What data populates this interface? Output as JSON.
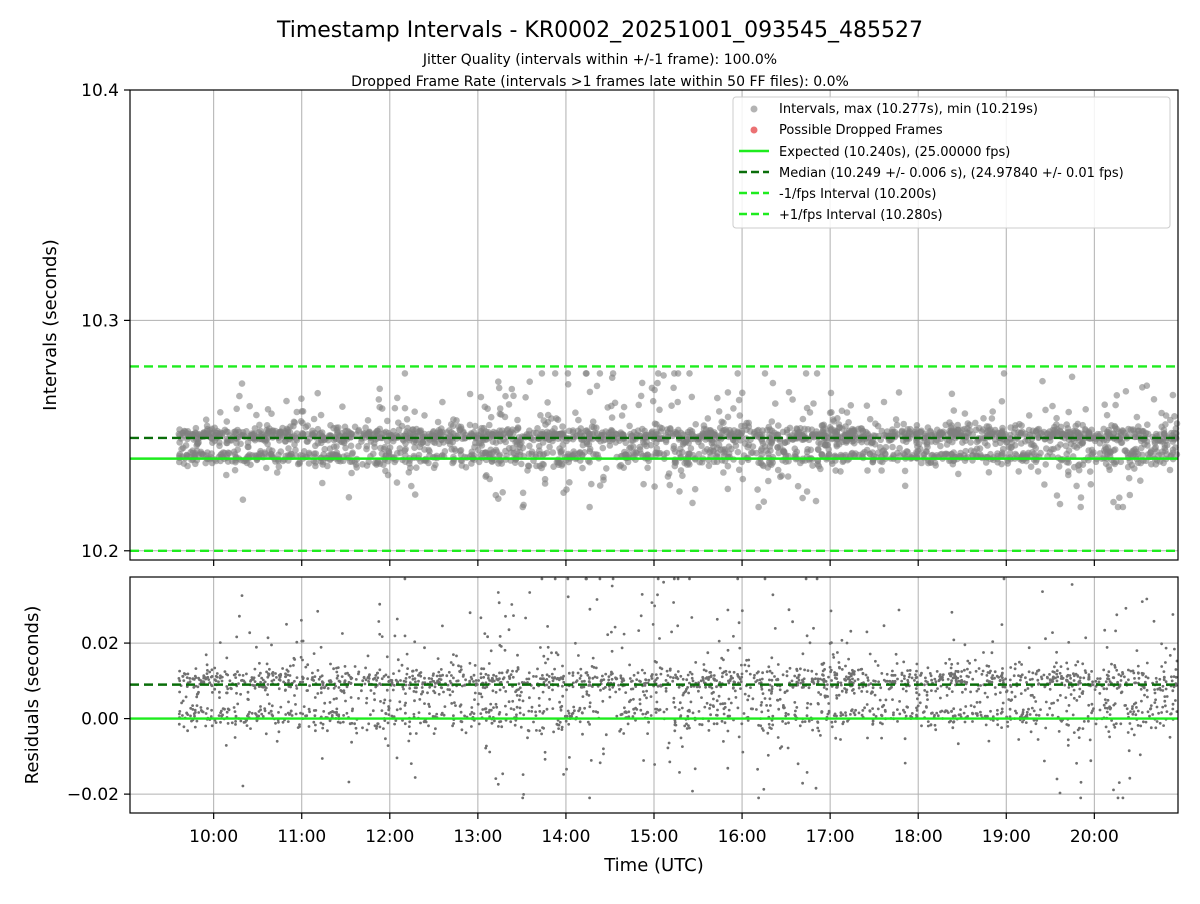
{
  "figure": {
    "title": "Timestamp Intervals - KR0002_20251001_093545_485527",
    "subtitle1": "Jitter Quality (intervals within +/-1 frame): 100.0%",
    "subtitle2": "Dropped Frame Rate (intervals >1 frames late within 50 FF files): 0.0%"
  },
  "chart_data": [
    {
      "type": "scatter",
      "panel": "intervals",
      "xlabel": "",
      "ylabel": "Intervals (seconds)",
      "xlim": [
        9.05,
        20.95
      ],
      "ylim": [
        10.196,
        10.4
      ],
      "yticks": [
        10.2,
        10.3,
        10.4
      ],
      "ytick_labels": [
        "10.2",
        "10.3",
        "10.4"
      ],
      "grid": true,
      "legend_placement": "upper right",
      "legend": [
        "Intervals, max (10.277s), min (10.219s)",
        "Possible Dropped Frames",
        "Expected (10.240s), (25.00000 fps)",
        "Median (10.249 +/- 0.006 s), (24.97840 +/- 0.01 fps)",
        "-1/fps Interval (10.200s)",
        "+1/fps Interval (10.280s)"
      ],
      "series": [
        {
          "name": "Intervals, max (10.277s), min (10.219s)",
          "kind": "scatter",
          "color": "#808080",
          "x_range": [
            9.6,
            20.95
          ],
          "y_center": 10.249,
          "y_spread": 0.006,
          "y_max": 10.277,
          "y_min": 10.219
        },
        {
          "name": "Possible Dropped Frames",
          "kind": "scatter",
          "color": "#e8585a",
          "points": []
        }
      ],
      "reference_lines": [
        {
          "name": "Expected (10.240s), (25.00000 fps)",
          "y": 10.24,
          "color": "#1eec1e",
          "style": "solid"
        },
        {
          "name": "Median (10.249 +/- 0.006 s), (24.97840 +/- 0.01 fps)",
          "y": 10.249,
          "color": "#0a6e0a",
          "style": "dashed"
        },
        {
          "name": "-1/fps Interval (10.200s)",
          "y": 10.2,
          "color": "#1eec1e",
          "style": "dashed"
        },
        {
          "name": "+1/fps Interval (10.280s)",
          "y": 10.28,
          "color": "#1eec1e",
          "style": "dashed"
        }
      ]
    },
    {
      "type": "scatter",
      "panel": "residuals",
      "xlabel": "Time (UTC)",
      "ylabel": "Residuals (seconds)",
      "xlim": [
        9.05,
        20.95
      ],
      "ylim": [
        -0.025,
        0.0375
      ],
      "yticks": [
        -0.02,
        0.0,
        0.02
      ],
      "ytick_labels": [
        "−0.02",
        "0.00",
        "0.02"
      ],
      "xticks": [
        10,
        11,
        12,
        13,
        14,
        15,
        16,
        17,
        18,
        19,
        20
      ],
      "xtick_labels": [
        "10:00",
        "11:00",
        "12:00",
        "13:00",
        "14:00",
        "15:00",
        "16:00",
        "17:00",
        "18:00",
        "19:00",
        "20:00"
      ],
      "grid": true,
      "series": [
        {
          "kind": "scatter",
          "color": "#707070",
          "x_range": [
            9.6,
            20.95
          ],
          "y_center": 0.009,
          "y_spread": 0.006,
          "y_max": 0.037,
          "y_min": -0.021
        }
      ],
      "reference_lines": [
        {
          "y": 0.0,
          "color": "#1eec1e",
          "style": "solid"
        },
        {
          "y": 0.009,
          "color": "#0a6e0a",
          "style": "dashed"
        }
      ]
    }
  ]
}
